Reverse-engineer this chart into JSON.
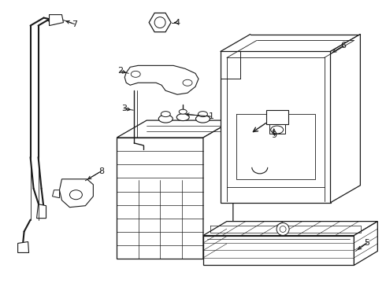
{
  "bg_color": "#ffffff",
  "line_color": "#1a1a1a",
  "lw": 0.9,
  "fig_w": 4.9,
  "fig_h": 3.6,
  "dpi": 100
}
